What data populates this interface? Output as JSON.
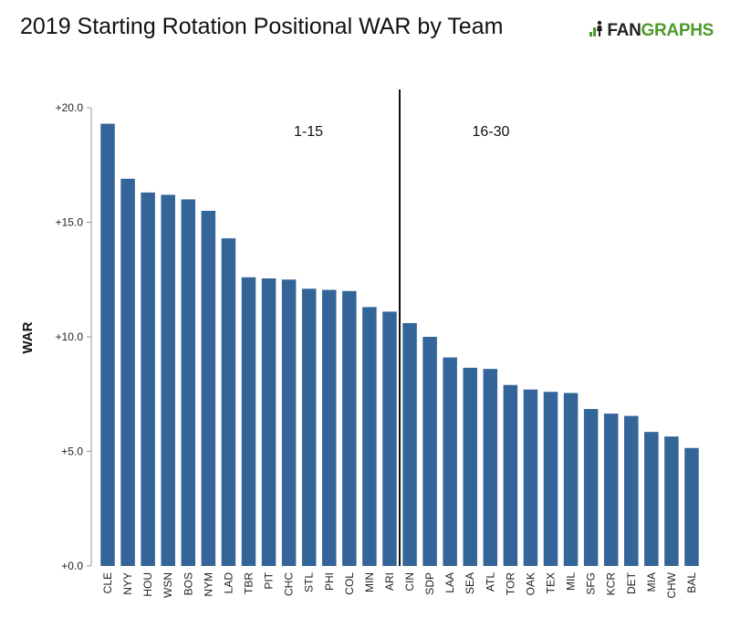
{
  "header": {
    "title": "2019 Starting Rotation Positional WAR by Team",
    "logo_text_dark": "FAN",
    "logo_text_green": "GRAPHS",
    "logo_icon": "fangraphs-logo-icon"
  },
  "colors": {
    "bar": "#346598",
    "axis": "#9a9a9a",
    "divider": "#111111",
    "logo_green": "#4e9a2c"
  },
  "chart_data": {
    "type": "bar",
    "title": "2019 Starting Rotation Positional WAR by Team",
    "xlabel": "",
    "ylabel": "WAR",
    "ylim": [
      0,
      20
    ],
    "yticks": [
      0,
      5,
      10,
      15,
      20
    ],
    "ytick_labels": [
      "+0.0",
      "+5.0",
      "+10.0",
      "+15.0",
      "+20.0"
    ],
    "grid": false,
    "categories": [
      "CLE",
      "NYY",
      "HOU",
      "WSN",
      "BOS",
      "NYM",
      "LAD",
      "TBR",
      "PIT",
      "CHC",
      "STL",
      "PHI",
      "COL",
      "MIN",
      "ARI",
      "CIN",
      "SDP",
      "LAA",
      "SEA",
      "ATL",
      "TOR",
      "OAK",
      "TEX",
      "MIL",
      "SFG",
      "KCR",
      "DET",
      "MIA",
      "CHW",
      "BAL"
    ],
    "values": [
      19.3,
      16.9,
      16.3,
      16.2,
      16.0,
      15.5,
      14.3,
      12.6,
      12.55,
      12.5,
      12.1,
      12.05,
      12.0,
      11.3,
      11.1,
      10.6,
      10.0,
      9.1,
      8.65,
      8.6,
      7.9,
      7.7,
      7.6,
      7.55,
      6.85,
      6.65,
      6.55,
      5.85,
      5.65,
      5.15
    ],
    "annotations": [
      {
        "text": "1-15",
        "after_category": "ARI",
        "side": "left"
      },
      {
        "text": "16-30",
        "after_category": "ARI",
        "side": "right"
      }
    ]
  }
}
